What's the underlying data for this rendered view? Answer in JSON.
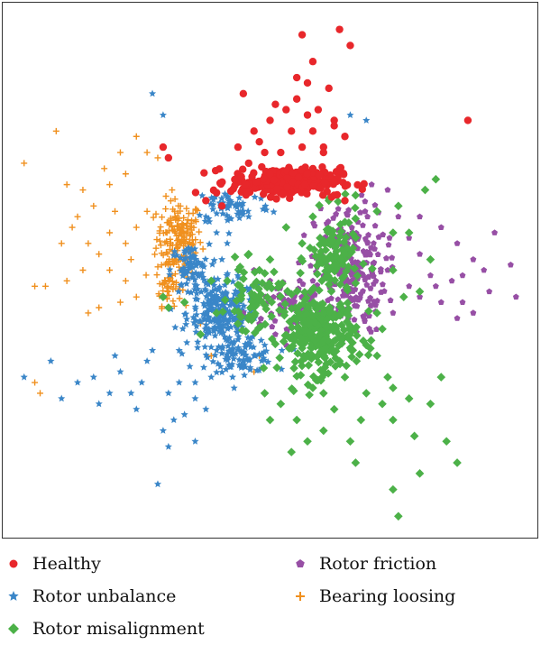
{
  "chart_data": {
    "type": "scatter",
    "title": "",
    "xlabel": "",
    "ylabel": "",
    "xlim": [
      0,
      100
    ],
    "ylim": [
      0,
      100
    ],
    "grid": false,
    "axes_ticks": false,
    "legend_placement": "bottom",
    "series": [
      {
        "name": "Healthy",
        "marker": "circle",
        "color": "#e8272b",
        "clusters": [
          {
            "cx": 53,
            "cy": 66.5,
            "rx": 8.5,
            "ry": 2.2,
            "n": 260
          }
        ],
        "scatter": [
          [
            63,
            95
          ],
          [
            56,
            94
          ],
          [
            65,
            92
          ],
          [
            58,
            89
          ],
          [
            45,
            83
          ],
          [
            51,
            81
          ],
          [
            55,
            82
          ],
          [
            61,
            84
          ],
          [
            59,
            80
          ],
          [
            62,
            77
          ],
          [
            53,
            80
          ],
          [
            47,
            76
          ],
          [
            50,
            78
          ],
          [
            58,
            76
          ],
          [
            48,
            74
          ],
          [
            64,
            75
          ],
          [
            87,
            78
          ],
          [
            30,
            73
          ],
          [
            56,
            73
          ],
          [
            60,
            72
          ],
          [
            49,
            72
          ],
          [
            54,
            76
          ],
          [
            57,
            79
          ],
          [
            52,
            72
          ],
          [
            44,
            73
          ],
          [
            63,
            69
          ],
          [
            55,
            86
          ],
          [
            62,
            78
          ],
          [
            57,
            85
          ],
          [
            60,
            73
          ],
          [
            46,
            70
          ],
          [
            62,
            64
          ],
          [
            64,
            63
          ],
          [
            41,
            62
          ],
          [
            38,
            63
          ],
          [
            31,
            71
          ]
        ]
      },
      {
        "name": "Rotor unbalance",
        "marker": "star",
        "color": "#3a86c8",
        "clusters": [
          {
            "cx": 41,
            "cy": 42,
            "rx": 5.5,
            "ry": 5,
            "n": 240
          },
          {
            "cx": 45,
            "cy": 34,
            "rx": 5,
            "ry": 2.5,
            "n": 90
          },
          {
            "cx": 35,
            "cy": 50,
            "rx": 3,
            "ry": 4,
            "n": 70
          },
          {
            "cx": 43,
            "cy": 62,
            "rx": 6,
            "ry": 3,
            "n": 60
          }
        ],
        "scatter": [
          [
            28,
            83
          ],
          [
            30,
            79
          ],
          [
            4,
            30
          ],
          [
            9,
            33
          ],
          [
            11,
            26
          ],
          [
            17,
            30
          ],
          [
            20,
            27
          ],
          [
            25,
            24
          ],
          [
            30,
            20
          ],
          [
            32,
            22
          ],
          [
            36,
            26
          ],
          [
            38,
            24
          ],
          [
            27,
            33
          ],
          [
            33,
            29
          ],
          [
            29,
            10
          ],
          [
            36,
            29
          ],
          [
            14,
            29
          ],
          [
            22,
            31
          ],
          [
            40,
            35
          ],
          [
            33,
            35
          ],
          [
            24,
            27
          ],
          [
            28,
            35
          ],
          [
            18,
            25
          ],
          [
            31,
            27
          ],
          [
            35,
            32
          ],
          [
            26,
            29
          ],
          [
            39,
            30
          ],
          [
            31,
            17
          ],
          [
            34,
            23
          ],
          [
            21,
            34
          ],
          [
            43,
            30
          ],
          [
            41,
            52
          ],
          [
            42,
            55
          ],
          [
            46,
            60
          ],
          [
            38,
            60
          ],
          [
            68,
            78
          ],
          [
            65,
            79
          ],
          [
            40,
            57
          ],
          [
            44,
            50
          ],
          [
            36,
            18
          ]
        ]
      },
      {
        "name": "Rotor misalignment",
        "marker": "diamond",
        "color": "#4cb148",
        "clusters": [
          {
            "cx": 59,
            "cy": 38,
            "rx": 6,
            "ry": 6,
            "n": 280
          },
          {
            "cx": 62,
            "cy": 52,
            "rx": 4,
            "ry": 7,
            "n": 110
          },
          {
            "cx": 47,
            "cy": 45,
            "rx": 4,
            "ry": 5,
            "n": 60
          }
        ],
        "scatter": [
          [
            81,
            67
          ],
          [
            79,
            65
          ],
          [
            74,
            62
          ],
          [
            76,
            57
          ],
          [
            80,
            52
          ],
          [
            73,
            50
          ],
          [
            75,
            45
          ],
          [
            70,
            42
          ],
          [
            68,
            36
          ],
          [
            72,
            30
          ],
          [
            76,
            26
          ],
          [
            71,
            25
          ],
          [
            73,
            28
          ],
          [
            67,
            22
          ],
          [
            65,
            18
          ],
          [
            66,
            14
          ],
          [
            60,
            20
          ],
          [
            62,
            24
          ],
          [
            55,
            22
          ],
          [
            57,
            18
          ],
          [
            54,
            16
          ],
          [
            50,
            22
          ],
          [
            52,
            25
          ],
          [
            60,
            27
          ],
          [
            64,
            30
          ],
          [
            68,
            27
          ],
          [
            73,
            22
          ],
          [
            77,
            19
          ],
          [
            80,
            25
          ],
          [
            83,
            18
          ],
          [
            85,
            14
          ],
          [
            78,
            12
          ],
          [
            73,
            9
          ],
          [
            74,
            4
          ],
          [
            82,
            30
          ],
          [
            70,
            34
          ],
          [
            63,
            33
          ],
          [
            58,
            28
          ],
          [
            49,
            27
          ],
          [
            40,
            42
          ],
          [
            34,
            44
          ],
          [
            37,
            38
          ],
          [
            31,
            43
          ],
          [
            30,
            45
          ],
          [
            39,
            48
          ],
          [
            42,
            48
          ],
          [
            44,
            40
          ],
          [
            48,
            50
          ],
          [
            46,
            53
          ],
          [
            50,
            52
          ],
          [
            53,
            58
          ],
          [
            56,
            55
          ],
          [
            58,
            60
          ],
          [
            61,
            63
          ],
          [
            64,
            59
          ],
          [
            66,
            64
          ],
          [
            70,
            61
          ],
          [
            73,
            57
          ],
          [
            78,
            46
          ],
          [
            71,
            39
          ]
        ]
      },
      {
        "name": "Rotor friction",
        "marker": "pentagon",
        "color": "#974fa5",
        "clusters": [
          {
            "cx": 65,
            "cy": 50,
            "rx": 5.5,
            "ry": 10,
            "n": 220
          },
          {
            "cx": 55,
            "cy": 44,
            "rx": 5,
            "ry": 4,
            "n": 70
          }
        ],
        "scatter": [
          [
            72,
            65
          ],
          [
            74,
            62
          ],
          [
            78,
            60
          ],
          [
            82,
            58
          ],
          [
            85,
            55
          ],
          [
            88,
            52
          ],
          [
            90,
            50
          ],
          [
            92,
            57
          ],
          [
            95,
            51
          ],
          [
            96,
            45
          ],
          [
            91,
            46
          ],
          [
            86,
            44
          ],
          [
            82,
            44
          ],
          [
            78,
            45
          ],
          [
            76,
            47
          ],
          [
            80,
            49
          ],
          [
            84,
            48
          ],
          [
            86,
            49
          ],
          [
            76,
            56
          ],
          [
            74,
            60
          ],
          [
            69,
            66
          ],
          [
            72,
            50
          ],
          [
            78,
            53
          ],
          [
            81,
            47
          ],
          [
            85,
            41
          ],
          [
            88,
            42
          ],
          [
            73,
            42
          ],
          [
            50,
            48
          ],
          [
            47,
            50
          ],
          [
            45,
            42
          ],
          [
            48,
            40
          ],
          [
            51,
            38
          ],
          [
            53,
            36
          ]
        ]
      },
      {
        "name": "Bearing loosing",
        "marker": "plus",
        "color": "#f0901e",
        "clusters": [
          {
            "cx": 33,
            "cy": 56,
            "rx": 3.5,
            "ry": 6,
            "n": 170
          },
          {
            "cx": 31,
            "cy": 47,
            "rx": 2,
            "ry": 3,
            "n": 40
          }
        ],
        "scatter": [
          [
            10,
            76
          ],
          [
            4,
            70
          ],
          [
            12,
            66
          ],
          [
            15,
            65
          ],
          [
            20,
            66
          ],
          [
            23,
            68
          ],
          [
            25,
            75
          ],
          [
            27,
            72
          ],
          [
            29,
            71
          ],
          [
            22,
            72
          ],
          [
            19,
            69
          ],
          [
            17,
            62
          ],
          [
            14,
            60
          ],
          [
            11,
            55
          ],
          [
            16,
            55
          ],
          [
            21,
            61
          ],
          [
            23,
            55
          ],
          [
            18,
            53
          ],
          [
            15,
            50
          ],
          [
            12,
            48
          ],
          [
            20,
            50
          ],
          [
            23,
            48
          ],
          [
            8,
            47
          ],
          [
            6,
            47
          ],
          [
            18,
            43
          ],
          [
            16,
            42
          ],
          [
            22,
            44
          ],
          [
            25,
            45
          ],
          [
            7,
            27
          ],
          [
            6,
            29
          ],
          [
            48,
            34
          ],
          [
            47,
            31
          ],
          [
            37,
            40
          ],
          [
            39,
            34
          ],
          [
            27,
            61
          ],
          [
            25,
            58
          ],
          [
            24,
            52
          ],
          [
            20,
            57
          ],
          [
            13,
            58
          ]
        ]
      }
    ]
  }
}
